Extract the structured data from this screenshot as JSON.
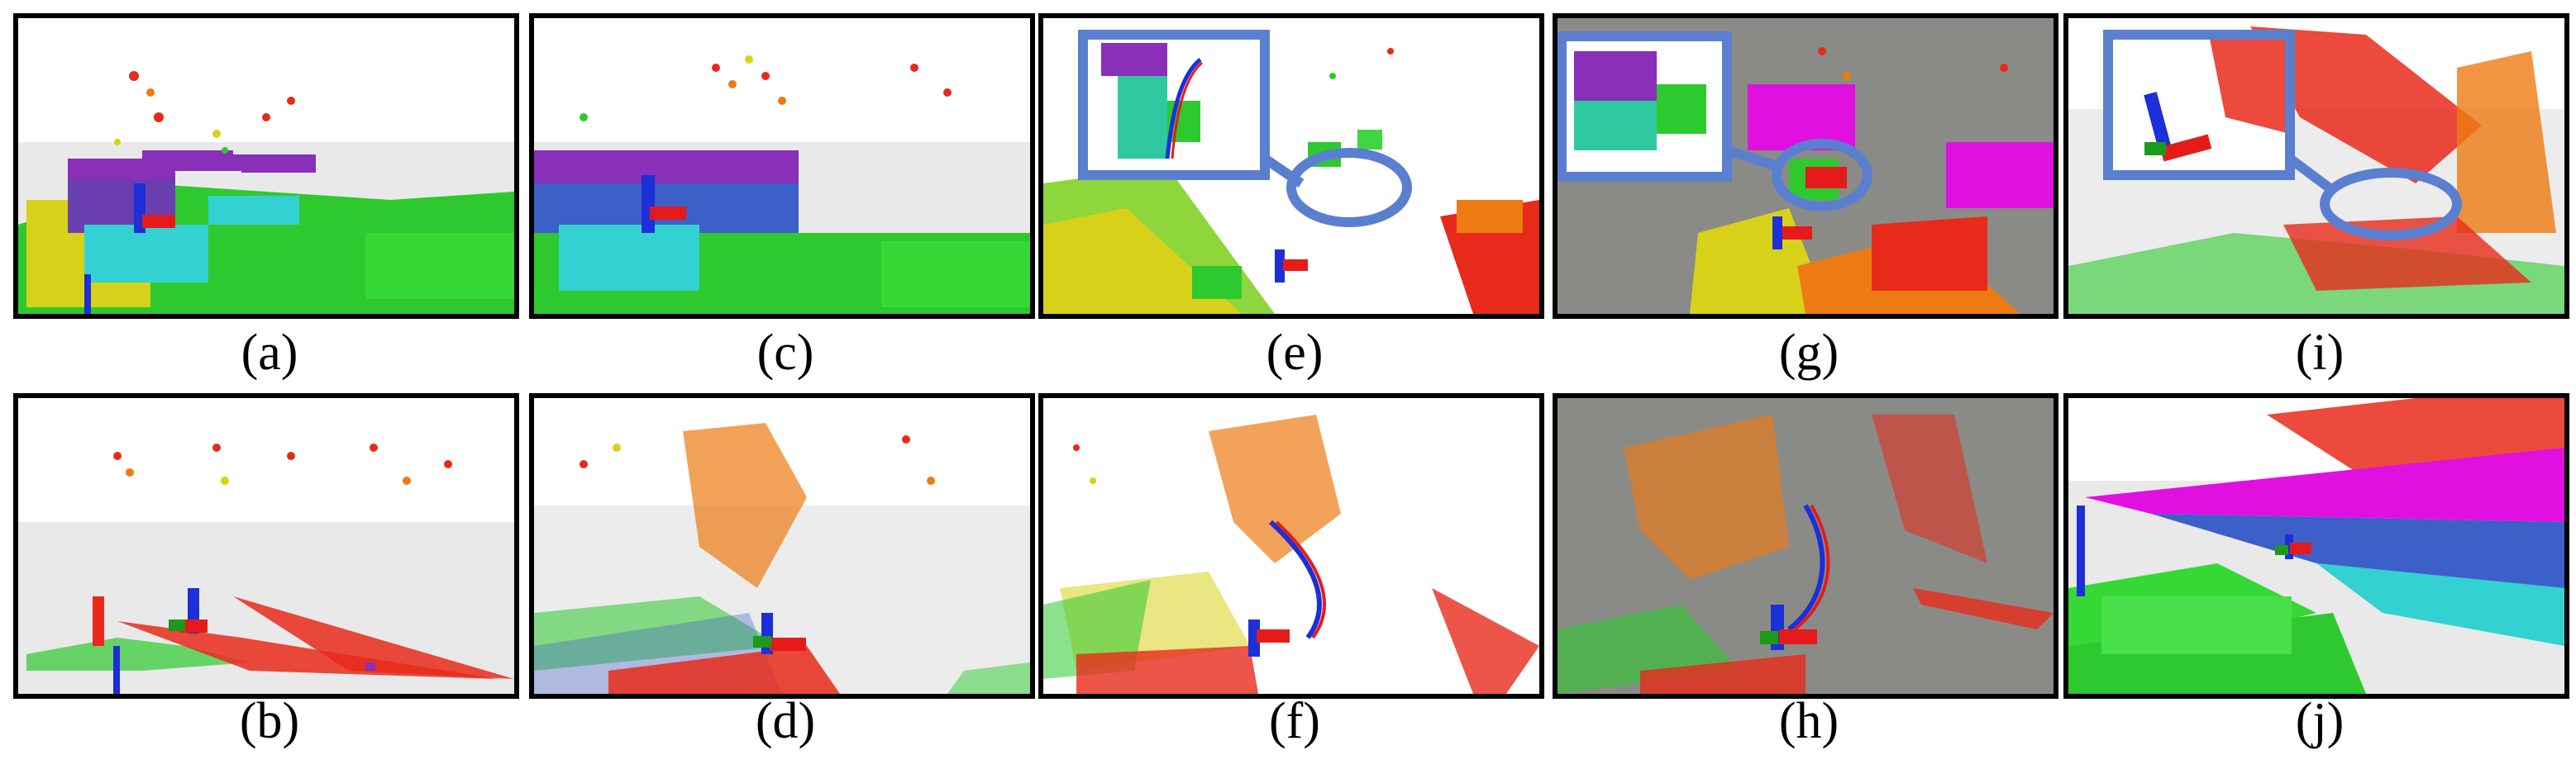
{
  "figure": {
    "captions": [
      "(a)",
      "(c)",
      "(e)",
      "(g)",
      "(i)",
      "(b)",
      "(d)",
      "(f)",
      "(h)",
      "(j)"
    ]
  },
  "colors": {
    "highlight": "#5b7fcf",
    "voxel_purple": "#8a2fb8",
    "voxel_magenta": "#e010e0",
    "voxel_cyan": "#33d1d1",
    "voxel_green": "#2ec92e",
    "voxel_yellow": "#d8d11a",
    "voxel_orange": "#ee7a14",
    "voxel_red": "#e82a1a",
    "axis_blue": "#1d2fd8",
    "axis_red": "#e51b1b",
    "axis_green": "#1c9a1c",
    "background_white": "#ffffff",
    "background_gray": "#8a8b86"
  }
}
